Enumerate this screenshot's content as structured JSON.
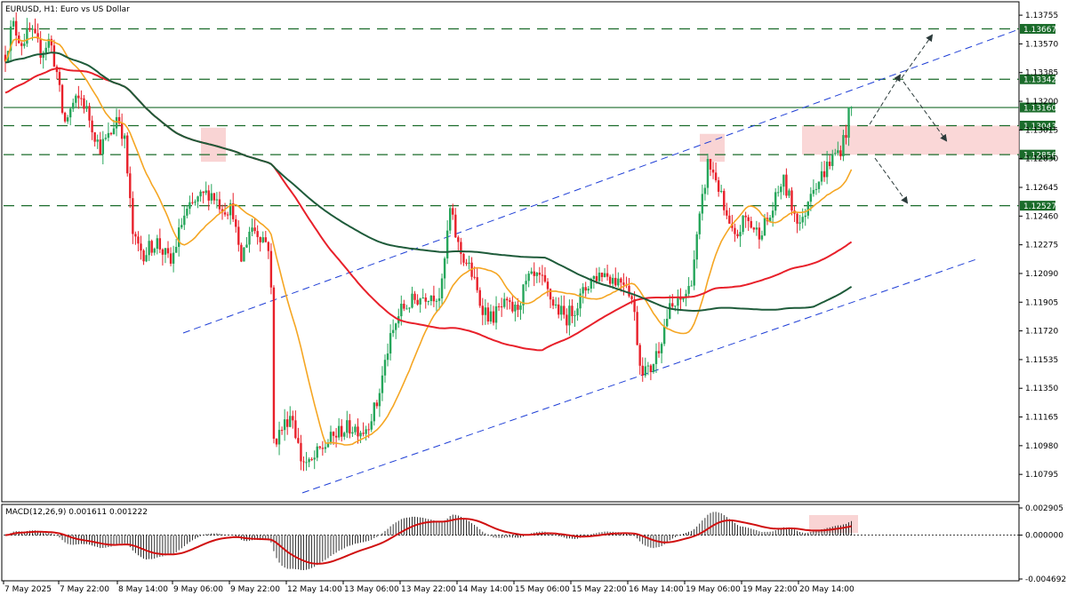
{
  "chart_data": {
    "type": "candlestick",
    "title": "EURUSD, H1:  Euro vs US Dollar",
    "indicator_title": "MACD(12,26,9) 0.001611 0.001222",
    "colors": {
      "bull": "#26a65b",
      "bear": "#e8202a",
      "ma_fast": "#f5a623",
      "ma_mid": "#e8202a",
      "ma_slow": "#1e5b3a",
      "channel": "#1f3fd6",
      "level": "#1a6b2a",
      "price_tag": "#1a6b2a",
      "zone": "#f8c9c9",
      "macd_hist": "#000000",
      "macd_signal": "#d01010",
      "arrow": "#2b3a3a"
    },
    "price_range": [
      1.1063,
      1.1383
    ],
    "y_ticks": [
      "1.13755",
      "1.13570",
      "1.13385",
      "1.13200",
      "1.13015",
      "1.12830",
      "1.12645",
      "1.12460",
      "1.12275",
      "1.12090",
      "1.11905",
      "1.11720",
      "1.11535",
      "1.11350",
      "1.11165",
      "1.10980",
      "1.10795"
    ],
    "x_ticks": [
      "7 May 2025",
      "7 May 22:00",
      "8 May 14:00",
      "9 May 06:00",
      "9 May 22:00",
      "12 May 14:00",
      "13 May 06:00",
      "13 May 22:00",
      "14 May 14:00",
      "15 May 06:00",
      "15 May 22:00",
      "16 May 14:00",
      "19 May 06:00",
      "19 May 22:00",
      "20 May 14:00"
    ],
    "levels": [
      {
        "label": "1.13667",
        "value": 1.13667
      },
      {
        "label": "1.13342",
        "value": 1.13342
      },
      {
        "label": "1.13160",
        "value": 1.1316
      },
      {
        "label": "1.13043",
        "value": 1.13043
      },
      {
        "label": "1.12856",
        "value": 1.12856
      },
      {
        "label": "1.12527",
        "value": 1.12527
      }
    ],
    "macd_ticks": [
      "0.002905",
      "0.000000",
      "-0.004692"
    ],
    "macd_range": [
      -0.004692,
      0.002905
    ]
  }
}
